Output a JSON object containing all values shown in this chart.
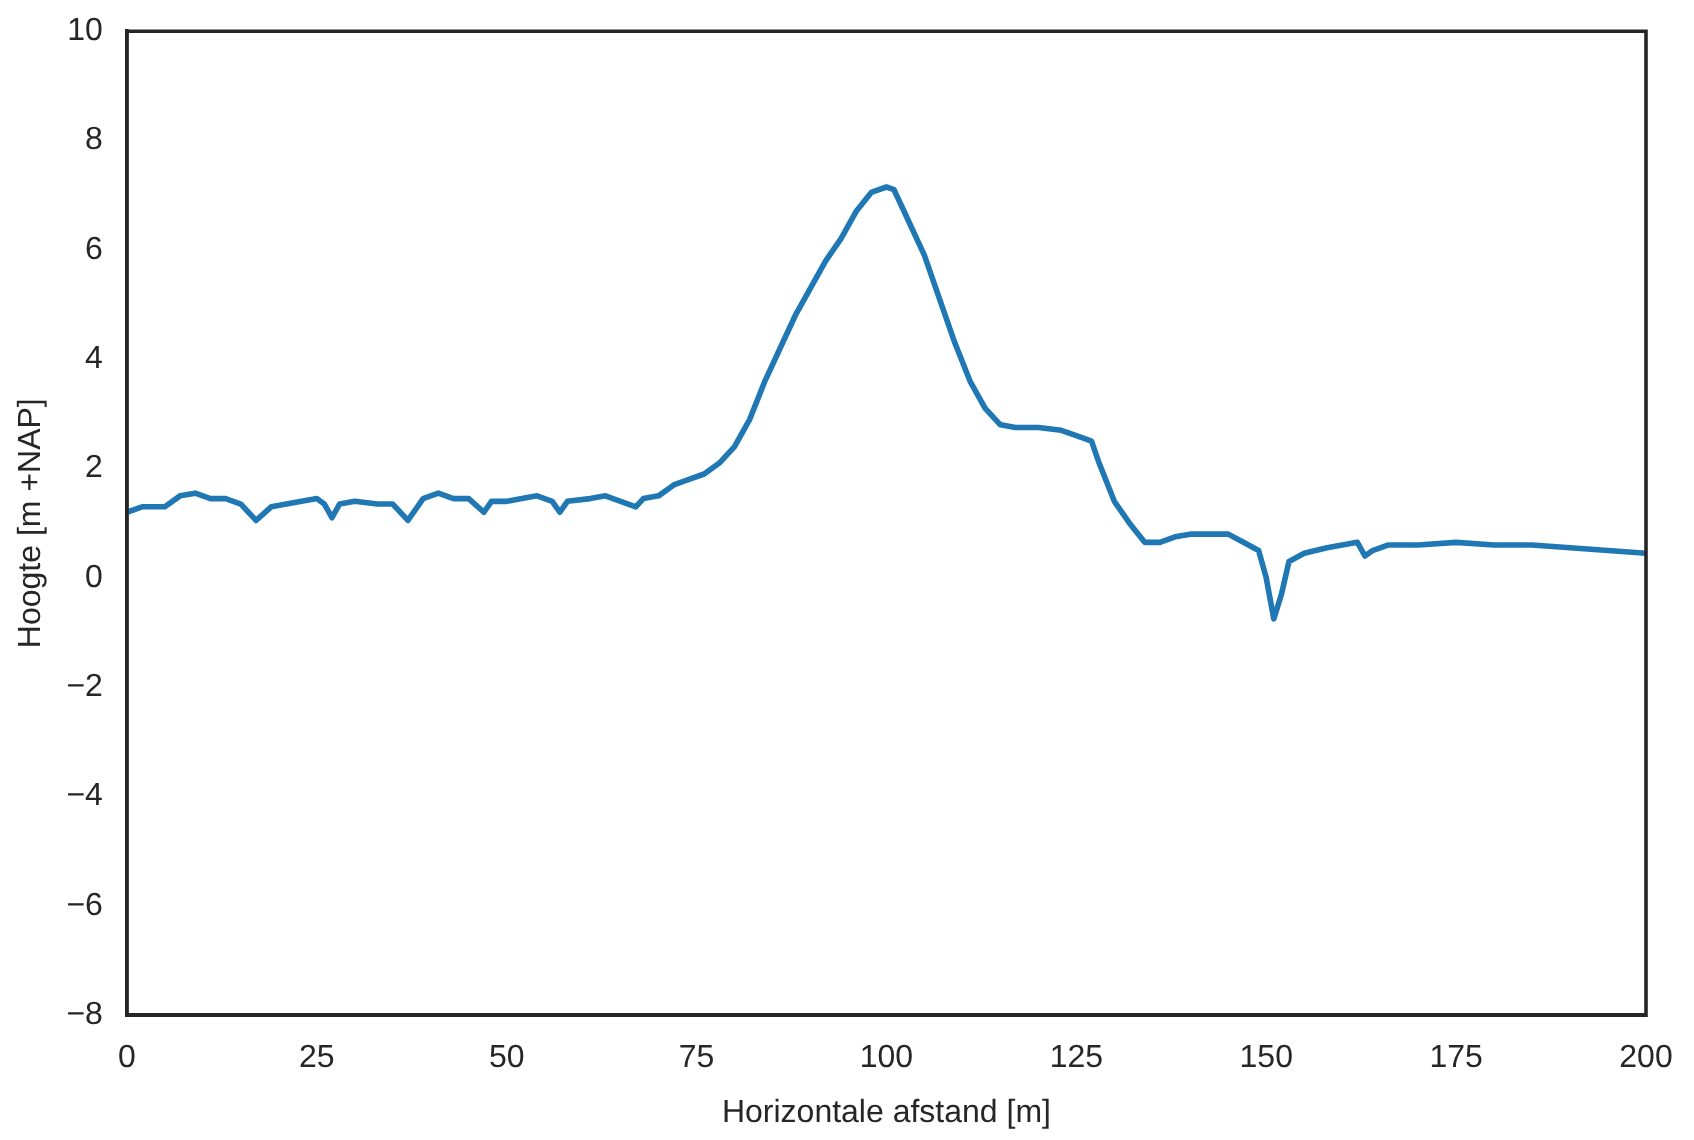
{
  "chart_data": {
    "type": "line",
    "xlabel": "Horizontale afstand [m]",
    "ylabel": "Hoogte [m +NAP]",
    "x": [
      0,
      2,
      5,
      7,
      9,
      11,
      13,
      15,
      17,
      19,
      21,
      23,
      25,
      26,
      27,
      28,
      30,
      33,
      35,
      37,
      39,
      41,
      43,
      45,
      47,
      48,
      50,
      52,
      54,
      56,
      57,
      58,
      61,
      63,
      65,
      67,
      68,
      70,
      72,
      74,
      76,
      78,
      80,
      82,
      84,
      86,
      88,
      90,
      92,
      94,
      96,
      98,
      100,
      101,
      103,
      105,
      107,
      109,
      111,
      113,
      115,
      117,
      120,
      123,
      125,
      127,
      128,
      130,
      132,
      134,
      136,
      138,
      140,
      143,
      145,
      147,
      149,
      150,
      151,
      152,
      153,
      155,
      158,
      162,
      163,
      164,
      166,
      170,
      175,
      180,
      185,
      190,
      195,
      200
    ],
    "series": [
      {
        "color": "#1f77b4",
        "values": [
          1.2,
          1.3,
          1.3,
          1.5,
          1.55,
          1.45,
          1.45,
          1.35,
          1.05,
          1.3,
          1.35,
          1.4,
          1.45,
          1.35,
          1.1,
          1.35,
          1.4,
          1.35,
          1.35,
          1.05,
          1.45,
          1.55,
          1.45,
          1.45,
          1.2,
          1.4,
          1.4,
          1.45,
          1.5,
          1.4,
          1.2,
          1.4,
          1.45,
          1.5,
          1.4,
          1.3,
          1.45,
          1.5,
          1.7,
          1.8,
          1.9,
          2.1,
          2.4,
          2.9,
          3.6,
          4.2,
          4.8,
          5.3,
          5.8,
          6.2,
          6.7,
          7.05,
          7.15,
          7.1,
          6.5,
          5.9,
          5.1,
          4.3,
          3.6,
          3.1,
          2.8,
          2.75,
          2.75,
          2.7,
          2.6,
          2.5,
          2.1,
          1.4,
          1.0,
          0.65,
          0.65,
          0.75,
          0.8,
          0.8,
          0.8,
          0.65,
          0.5,
          0.0,
          -0.75,
          -0.3,
          0.3,
          0.45,
          0.55,
          0.65,
          0.4,
          0.5,
          0.6,
          0.6,
          0.65,
          0.6,
          0.6,
          0.55,
          0.5,
          0.45
        ]
      }
    ],
    "xlim": [
      0,
      200
    ],
    "xticks": [
      0,
      25,
      50,
      75,
      100,
      125,
      150,
      175,
      200
    ],
    "ylim": [
      -8,
      10
    ],
    "yticks": [
      -8,
      -6,
      -4,
      -2,
      0,
      2,
      4,
      6,
      8,
      10
    ],
    "grid": false,
    "legend": false,
    "marker": "none",
    "line_style": "solid"
  }
}
